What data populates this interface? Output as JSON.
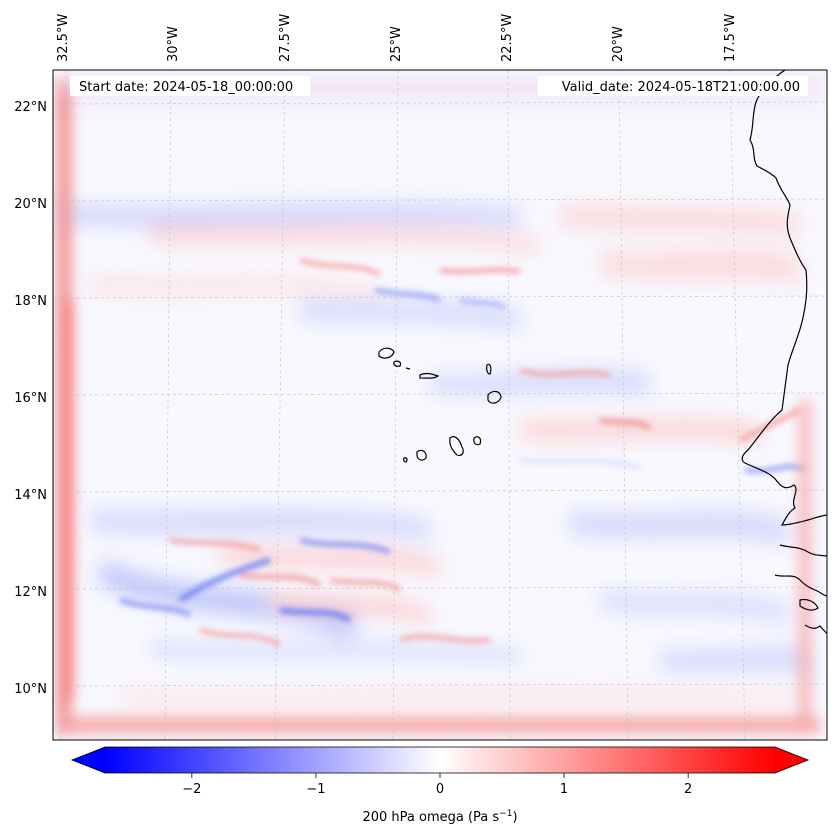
{
  "map": {
    "start_date_label": "Start date: 2024-05-18_00:00:00",
    "valid_date_label": "Valid_date: 2024-05-18T21:00:00.00",
    "lon_labels": [
      "32.5°W",
      "30°W",
      "27.5°W",
      "25°W",
      "22.5°W",
      "20°W",
      "17.5°W"
    ],
    "lat_labels": [
      "22°N",
      "20°N",
      "18°N",
      "16°N",
      "14°N",
      "12°N",
      "10°N"
    ],
    "field": "200 hPa omega",
    "coastline_color": "#000000"
  },
  "colorbar": {
    "ticks": [
      "−2",
      "−1",
      "0",
      "1",
      "2"
    ],
    "tick_values": [
      -2,
      -1,
      0,
      1,
      2
    ],
    "range": [
      -2.7,
      2.7
    ],
    "extend": "both",
    "cmap": "bwr",
    "label_prefix": "200 hPa omega (Pa s",
    "label_exp": "−1",
    "label_suffix": ")",
    "color_min": "#0000ff",
    "color_mid": "#ffffff",
    "color_max": "#ff0000"
  }
}
